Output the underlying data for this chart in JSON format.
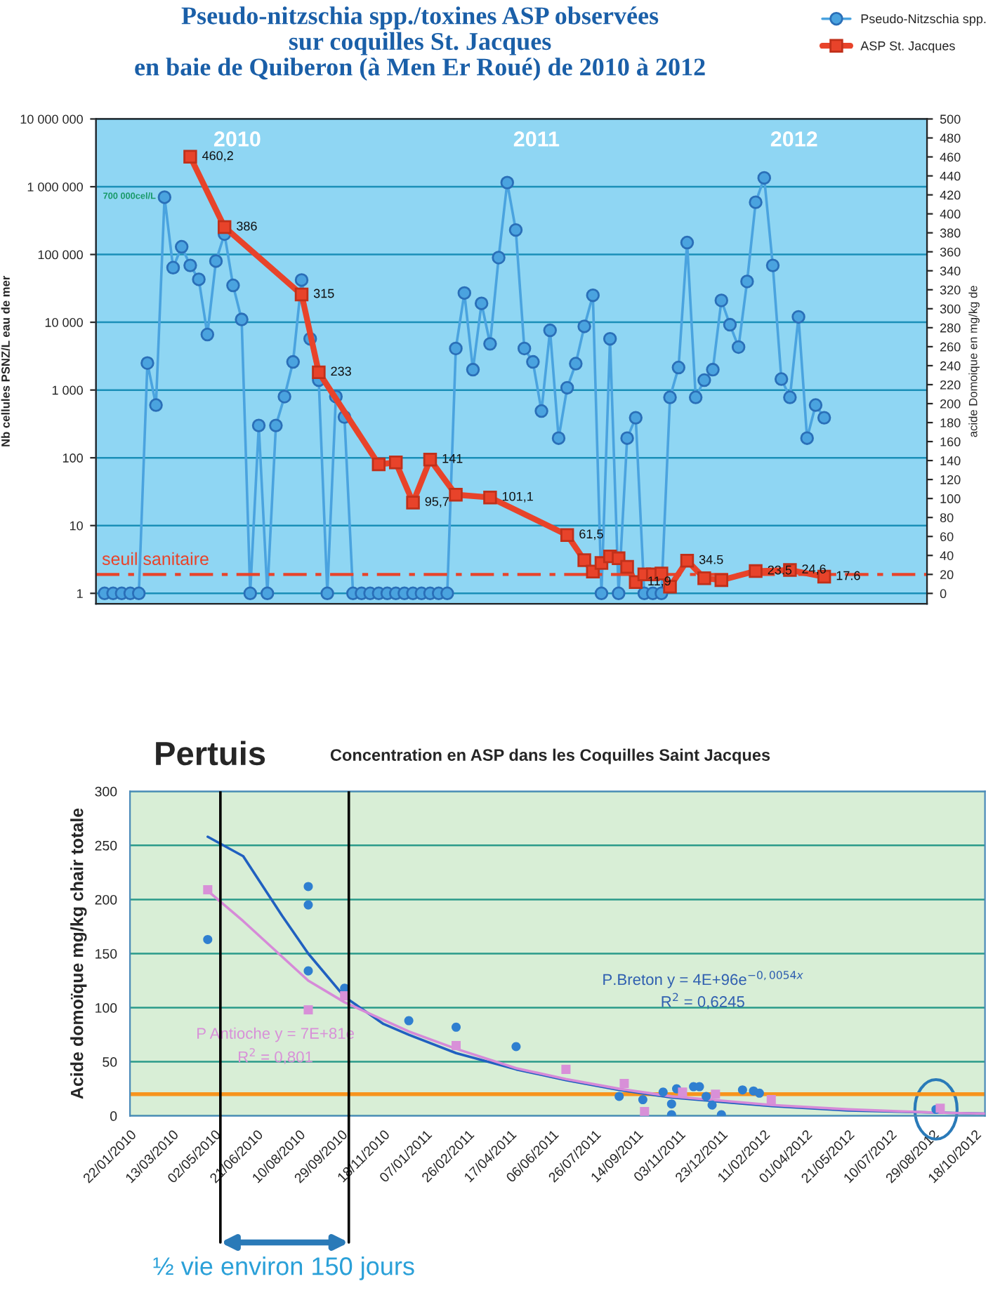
{
  "chart_data": [
    {
      "type": "line",
      "title": "Pseudo-nitzschia spp./toxines ASP observées\nsur coquilles St. Jacques\nen baie de Quiberon (à Men Er Roué) de 2010 à 2012",
      "ylabel": "Nb cellules PSNZ/L eau de mer",
      "y2label": "acide Domoique en mg/kg de",
      "categories": [
        null,
        null,
        null,
        null,
        null,
        null,
        null,
        null,
        null,
        null,
        null,
        null,
        null,
        null,
        null,
        null,
        null,
        null,
        null,
        null,
        null,
        null,
        null,
        null,
        null,
        null,
        null,
        null,
        null,
        null,
        null,
        null,
        null,
        null,
        null,
        null,
        null,
        null,
        null,
        null,
        null,
        null,
        null,
        null,
        null,
        null,
        null,
        null,
        null,
        null,
        null,
        null,
        null,
        null,
        null,
        null,
        null,
        null,
        null,
        null,
        null,
        null,
        null,
        null,
        null,
        null,
        null,
        null,
        null,
        null,
        null,
        null,
        null,
        null,
        null,
        null,
        null,
        null,
        null,
        null,
        null,
        null,
        null,
        null,
        null
      ],
      "series": [
        {
          "name": "Pseudo-Nitzschia spp.",
          "color": "#4aa3df",
          "marker": "circle",
          "values": [
            1,
            1,
            1,
            1,
            1,
            2500,
            600,
            700000,
            64000,
            130000,
            69000,
            43000,
            6600,
            80000,
            200000,
            35000,
            11000,
            1,
            300,
            1,
            300,
            800,
            2600,
            42000,
            5700,
            1400,
            1,
            800,
            400,
            1,
            1,
            1,
            1,
            1,
            1,
            1,
            1,
            1,
            1,
            1,
            1,
            4100,
            27000,
            2000,
            19000,
            4800,
            90000,
            1150000,
            230000,
            4100,
            2600,
            490,
            7600,
            195,
            1080,
            2450,
            8700,
            25000,
            1,
            5700,
            1,
            195,
            390,
            1,
            1,
            1,
            780,
            2150,
            150000,
            780,
            1400,
            2000,
            21000,
            9200,
            4300,
            40000,
            590000,
            1350000,
            69000,
            1450,
            780,
            12000,
            195,
            600,
            390
          ]
        },
        {
          "name": "ASP St. Jacques",
          "color": "#e8432a",
          "marker": "square",
          "axis": "y2",
          "values": [
            null,
            null,
            null,
            null,
            null,
            null,
            null,
            null,
            null,
            null,
            460.2,
            null,
            null,
            null,
            386,
            null,
            null,
            null,
            null,
            null,
            null,
            null,
            null,
            315,
            null,
            233,
            null,
            null,
            null,
            null,
            null,
            null,
            136,
            null,
            138,
            null,
            95.7,
            null,
            141,
            null,
            null,
            104,
            null,
            null,
            null,
            101.1,
            null,
            null,
            null,
            null,
            null,
            null,
            null,
            null,
            61.5,
            null,
            35,
            23,
            32,
            39,
            37,
            28,
            11.9,
            20,
            20,
            21,
            7,
            null,
            34.5,
            null,
            16,
            null,
            14,
            null,
            null,
            null,
            23.5,
            null,
            null,
            null,
            24.6,
            null,
            null,
            null,
            17.6
          ],
          "value_labels": [
            null,
            null,
            null,
            null,
            null,
            null,
            null,
            null,
            null,
            null,
            "460,2",
            null,
            null,
            null,
            "386",
            null,
            null,
            null,
            null,
            null,
            null,
            null,
            null,
            "315",
            null,
            "233",
            null,
            null,
            null,
            null,
            null,
            null,
            null,
            null,
            null,
            null,
            "95,7",
            null,
            "141",
            null,
            null,
            null,
            null,
            null,
            null,
            "101,1",
            null,
            null,
            null,
            null,
            null,
            null,
            null,
            null,
            "61,5",
            null,
            null,
            null,
            null,
            null,
            null,
            null,
            "11,9",
            null,
            null,
            null,
            null,
            null,
            "34.5",
            null,
            null,
            null,
            null,
            null,
            null,
            null,
            "23.5",
            null,
            null,
            null,
            "24,6",
            null,
            null,
            null,
            "17.6"
          ]
        }
      ],
      "log": true,
      "ylim": [
        0.7,
        10000000
      ],
      "yticks": [
        {
          "value": 1,
          "label": "1"
        },
        {
          "value": 10,
          "label": "10"
        },
        {
          "value": 100,
          "label": "100"
        },
        {
          "value": 1000,
          "label": "1 000"
        },
        {
          "value": 10000,
          "label": "10 000"
        },
        {
          "value": 100000,
          "label": "100 000"
        },
        {
          "value": 1000000,
          "label": "1 000 000"
        },
        {
          "value": 10000000,
          "label": "10 000 000"
        }
      ],
      "y2lim": [
        -11,
        500
      ],
      "y2ticks": [
        0,
        20,
        40,
        60,
        80,
        100,
        120,
        140,
        160,
        180,
        200,
        220,
        240,
        260,
        280,
        300,
        320,
        340,
        360,
        380,
        400,
        420,
        440,
        460,
        480,
        500
      ],
      "grid": "y",
      "legend": "top right",
      "tick_labels": "y",
      "ref_lines": [
        {
          "axis": "y2",
          "value": 20,
          "label": "seuil sanitaire",
          "color": "#e8432a",
          "line_style": "dashed"
        }
      ],
      "annotations": [
        "2010",
        "2011",
        "2012",
        "700 000cel/L"
      ]
    },
    {
      "type": "scatter",
      "title": "Pertuis",
      "subtitle": "Concentration en ASP dans les Coquilles Saint Jacques",
      "ylabel": "Acide domoïque mg/kg chair totale",
      "xlim": [
        "2010-01-22",
        "2012-10-30"
      ],
      "xticks": [
        {
          "value": "2010-01-22",
          "label": "22/01/2010"
        },
        {
          "value": "2010-03-13",
          "label": "13/03/2010"
        },
        {
          "value": "2010-05-02",
          "label": "02/05/2010"
        },
        {
          "value": "2010-06-21",
          "label": "21/06/2010"
        },
        {
          "value": "2010-08-10",
          "label": "10/08/2010"
        },
        {
          "value": "2010-09-29",
          "label": "29/09/2010"
        },
        {
          "value": "2010-11-18",
          "label": "18/11/2010"
        },
        {
          "value": "2011-01-07",
          "label": "07/01/2011"
        },
        {
          "value": "2011-02-26",
          "label": "26/02/2011"
        },
        {
          "value": "2011-04-17",
          "label": "17/04/2011"
        },
        {
          "value": "2011-06-06",
          "label": "06/06/2011"
        },
        {
          "value": "2011-07-26",
          "label": "26/07/2011"
        },
        {
          "value": "2011-09-14",
          "label": "14/09/2011"
        },
        {
          "value": "2011-11-03",
          "label": "03/11/2011"
        },
        {
          "value": "2011-12-23",
          "label": "23/12/2011"
        },
        {
          "value": "2012-02-11",
          "label": "11/02/2012"
        },
        {
          "value": "2012-04-01",
          "label": "01/04/2012"
        },
        {
          "value": "2012-05-21",
          "label": "21/05/2012"
        },
        {
          "value": "2012-07-10",
          "label": "10/07/2012"
        },
        {
          "value": "2012-08-29",
          "label": "29/08/2012"
        },
        {
          "value": "2012-10-18",
          "label": "18/10/2012"
        }
      ],
      "ylim": [
        0,
        300
      ],
      "yticks": [
        0,
        50,
        100,
        150,
        200,
        250,
        300
      ],
      "grid": "y",
      "series": [
        {
          "color": "#2f7fd0",
          "marker": "circle",
          "x": [
            "2010-04-24",
            "2010-08-21",
            "2010-08-21",
            "2010-08-21",
            "2010-10-03",
            "2010-12-18",
            "2011-02-12",
            "2011-04-24",
            "2011-08-24",
            "2011-09-21",
            "2011-10-15",
            "2011-10-25",
            "2011-10-25",
            "2011-10-31",
            "2011-11-20",
            "2011-11-27",
            "2011-12-05",
            "2011-12-12",
            "2011-12-23",
            "2012-01-17",
            "2012-01-30",
            "2012-02-06",
            "2012-09-02"
          ],
          "values": [
            163,
            212,
            195,
            134,
            118,
            88,
            82,
            64,
            18,
            15,
            22,
            11,
            1,
            25,
            27,
            27,
            18,
            10,
            1,
            24,
            23,
            21,
            6
          ]
        },
        {
          "color": "#d890d8",
          "marker": "square",
          "x": [
            "2010-04-24",
            "2010-08-21",
            "2010-10-03",
            "2011-02-12",
            "2011-06-22",
            "2011-08-30",
            "2011-09-23",
            "2011-11-07",
            "2011-12-16",
            "2012-02-20",
            "2012-09-07"
          ],
          "values": [
            209,
            98,
            111,
            65,
            43,
            30,
            4,
            22,
            20,
            15,
            7
          ]
        },
        {
          "type": "line",
          "color": "#2060c0",
          "x": [
            "2010-04-24",
            "2010-06-05",
            "2010-07-21",
            "2010-08-21",
            "2010-10-03",
            "2010-11-18",
            "2010-12-18",
            "2011-02-12",
            "2011-04-24",
            "2011-06-22",
            "2011-08-24",
            "2011-10-25",
            "2011-12-23",
            "2012-02-21",
            "2012-05-21",
            "2012-09-02",
            "2012-10-30"
          ],
          "values": [
            258,
            240,
            185,
            150,
            110,
            85,
            75,
            58,
            43,
            33,
            24,
            17,
            13,
            9,
            5,
            3,
            2
          ]
        },
        {
          "type": "line",
          "color": "#d68ad8",
          "x": [
            "2010-04-24",
            "2010-06-05",
            "2010-08-21",
            "2010-10-03",
            "2010-12-18",
            "2011-02-12",
            "2011-04-24",
            "2011-06-22",
            "2011-08-24",
            "2011-10-25",
            "2011-12-23",
            "2012-02-21",
            "2012-05-21",
            "2012-09-02",
            "2012-10-30"
          ],
          "values": [
            208,
            180,
            125,
            105,
            78,
            62,
            44,
            34,
            25,
            18,
            14,
            10,
            6,
            3,
            2
          ]
        }
      ],
      "ref_lines": [
        {
          "axis": "y",
          "value": 20,
          "color": "#f7941d"
        },
        {
          "axis": "x",
          "value": "2010-05-09",
          "color": "#000000"
        },
        {
          "axis": "x",
          "value": "2010-10-08",
          "color": "#000000"
        }
      ],
      "annotations": [
        "P.Breton y = 4E+96e$^{−0,0054x}$",
        "R$^{2}$ = 0,6245",
        "P Antioche y = 7E+81e",
        "R$^{2}$ = 0,801",
        "½ vie environ 150 jours"
      ]
    }
  ]
}
